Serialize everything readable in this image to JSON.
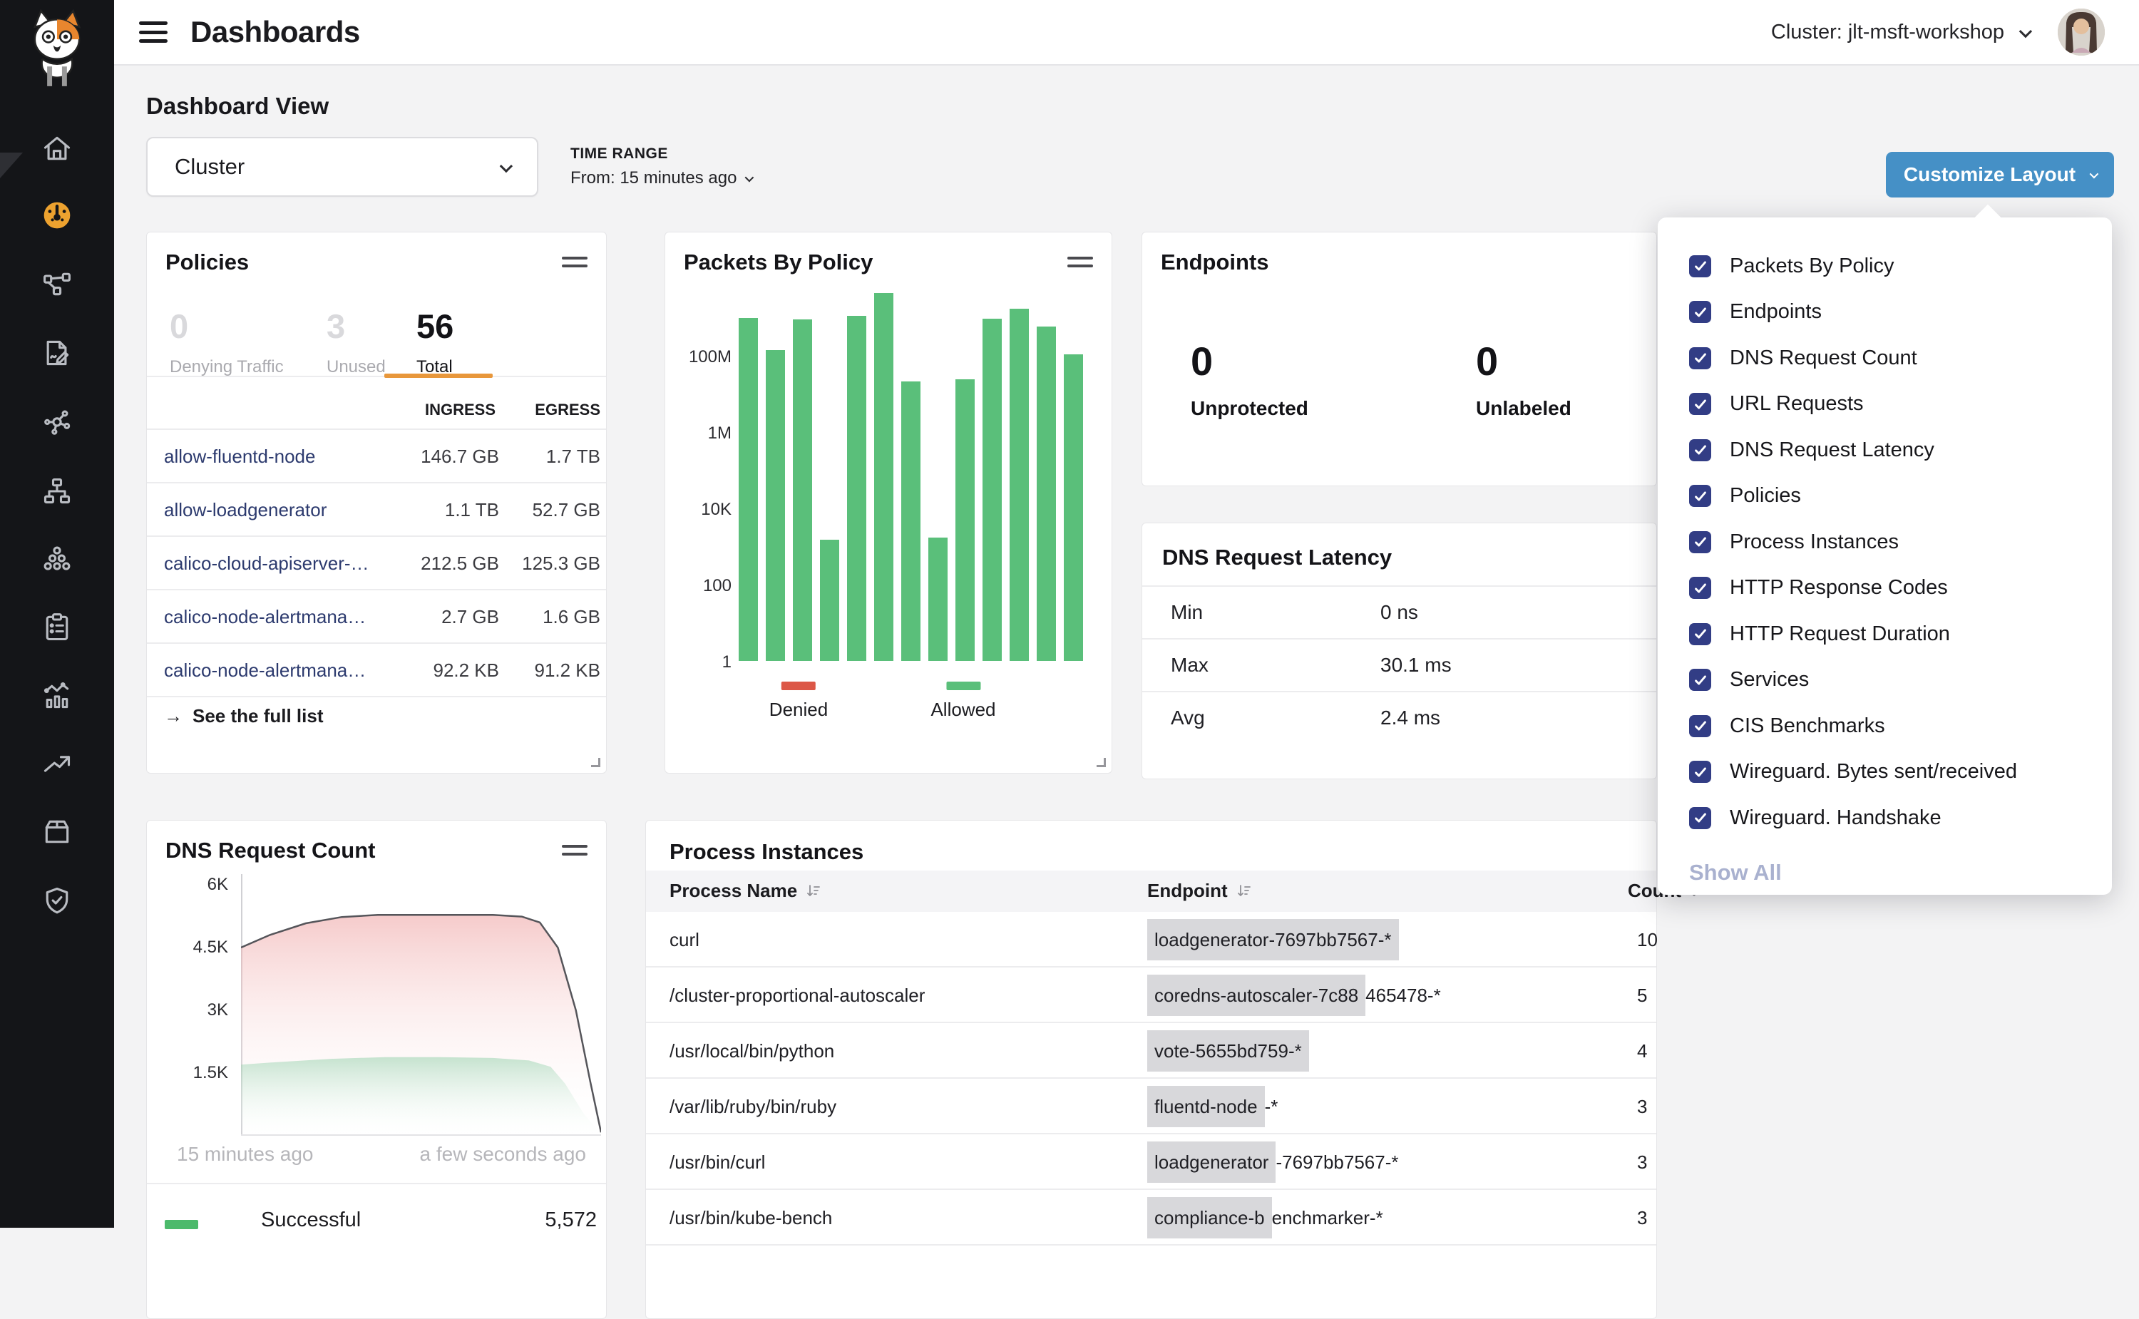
{
  "header": {
    "title": "Dashboards",
    "cluster": "Cluster: jlt-msft-workshop"
  },
  "toolbar": {
    "subtitle": "Dashboard View",
    "view_value": "Cluster",
    "time_range_label": "TIME RANGE",
    "time_range_value": "From: 15 minutes ago",
    "customize": "Customize Layout"
  },
  "sidebar": {
    "items": [
      {
        "icon": "home-icon",
        "active": false
      },
      {
        "icon": "dashboard-gauge-icon",
        "active": true
      },
      {
        "icon": "network-policy-icon",
        "active": false
      },
      {
        "icon": "policy-editor-icon",
        "active": false
      },
      {
        "icon": "service-graph-icon",
        "active": false
      },
      {
        "icon": "network-sets-icon",
        "active": false
      },
      {
        "icon": "workloads-icon",
        "active": false
      },
      {
        "icon": "compliance-clipboard-icon",
        "active": false
      },
      {
        "icon": "activity-stats-icon",
        "active": false
      },
      {
        "icon": "trend-icon",
        "active": false
      },
      {
        "icon": "package-icon",
        "active": false
      },
      {
        "icon": "security-shield-icon",
        "active": false
      }
    ]
  },
  "policies": {
    "title": "Policies",
    "stats": [
      {
        "value": "0",
        "label": "Denying Traffic",
        "active": false
      },
      {
        "value": "3",
        "label": "Unused",
        "active": false
      },
      {
        "value": "56",
        "label": "Total",
        "active": true
      }
    ],
    "columns": [
      "INGRESS",
      "EGRESS"
    ],
    "rows": [
      {
        "name": "allow-fluentd-node",
        "ingress": "146.7 GB",
        "egress": "1.7 TB"
      },
      {
        "name": "allow-loadgenerator",
        "ingress": "1.1 TB",
        "egress": "52.7 GB"
      },
      {
        "name": "calico-cloud-apiserver-…",
        "ingress": "212.5 GB",
        "egress": "125.3 GB"
      },
      {
        "name": "calico-node-alertmana…",
        "ingress": "2.7 GB",
        "egress": "1.6 GB"
      },
      {
        "name": "calico-node-alertmana…",
        "ingress": "92.2 KB",
        "egress": "91.2 KB"
      }
    ],
    "link": "See the full list"
  },
  "packets": {
    "title": "Packets By Policy",
    "chart_data": {
      "type": "bar",
      "scale": "log",
      "ylabel": "packets",
      "y_ticks": [
        {
          "label": "100M",
          "decade": 8
        },
        {
          "label": "1M",
          "decade": 6
        },
        {
          "label": "10K",
          "decade": 4
        },
        {
          "label": "100",
          "decade": 2
        },
        {
          "label": "1",
          "decade": 0
        }
      ],
      "values": [
        1000000000,
        140000000,
        900000000,
        1500,
        1100000000,
        4500000000,
        21000000,
        1700,
        24000000,
        930000000,
        1700000000,
        580000000,
        110000000
      ],
      "series_name": "Allowed",
      "legend": [
        {
          "label": "Denied",
          "color": "#dc5747",
          "x": 187
        },
        {
          "label": "Allowed",
          "color": "#5abf7a",
          "x": 418
        }
      ],
      "grid": false,
      "legend_position": "bottom"
    }
  },
  "endpoints": {
    "title": "Endpoints",
    "stats": [
      {
        "value": "0",
        "label": "Unprotected"
      },
      {
        "value": "0",
        "label": "Unlabeled"
      }
    ]
  },
  "dns_latency": {
    "title": "DNS Request Latency",
    "rows": [
      {
        "label": "Min",
        "value": "0 ns"
      },
      {
        "label": "Max",
        "value": "30.1 ms"
      },
      {
        "label": "Avg",
        "value": "2.4 ms"
      }
    ]
  },
  "dns_count": {
    "title": "DNS Request Count",
    "chart_data": {
      "type": "area",
      "y_ticks": [
        {
          "label": "6K",
          "value": 6000
        },
        {
          "label": "4.5K",
          "value": 4500
        },
        {
          "label": "3K",
          "value": 3000
        },
        {
          "label": "1.5K",
          "value": 1500
        }
      ],
      "x_labels": [
        "15 minutes ago",
        "a few seconds ago"
      ],
      "ylim": [
        0,
        6250
      ],
      "series": [
        {
          "name": "total-requests-line",
          "color_top": "rgba(238,160,160,0.55)",
          "line_color": "#55555a",
          "points": [
            [
              0,
              4500
            ],
            [
              0.08,
              4800
            ],
            [
              0.18,
              5080
            ],
            [
              0.28,
              5230
            ],
            [
              0.38,
              5280
            ],
            [
              0.55,
              5280
            ],
            [
              0.7,
              5280
            ],
            [
              0.78,
              5240
            ],
            [
              0.83,
              5100
            ],
            [
              0.88,
              4500
            ],
            [
              0.93,
              3000
            ],
            [
              0.97,
              1300
            ],
            [
              1,
              80
            ]
          ]
        },
        {
          "name": "successful-requests-area",
          "color_top": "rgba(140,205,165,0.5)",
          "line_color": "none",
          "points": [
            [
              0,
              1700
            ],
            [
              0.1,
              1760
            ],
            [
              0.25,
              1840
            ],
            [
              0.4,
              1880
            ],
            [
              0.55,
              1880
            ],
            [
              0.7,
              1860
            ],
            [
              0.8,
              1800
            ],
            [
              0.86,
              1650
            ],
            [
              0.9,
              1250
            ],
            [
              0.95,
              550
            ],
            [
              1,
              30
            ]
          ]
        }
      ],
      "grid": false
    },
    "legend": {
      "label": "Successful",
      "value": "5,572",
      "color": "#4cba6b"
    }
  },
  "process": {
    "title": "Process Instances",
    "columns": [
      "Process Name",
      "Endpoint",
      "Count"
    ],
    "rows": [
      {
        "process": "curl",
        "endpoint_hl": "loadgenerator-7697bb7567-*",
        "endpoint_rest": "",
        "count": "10"
      },
      {
        "process": "/cluster-proportional-autoscaler",
        "endpoint_hl": "coredns-autoscaler-7c88",
        "endpoint_rest": "465478-*",
        "count": "5"
      },
      {
        "process": "/usr/local/bin/python",
        "endpoint_hl": "vote-5655bd759-*",
        "endpoint_rest": "",
        "count": "4"
      },
      {
        "process": "/var/lib/ruby/bin/ruby",
        "endpoint_hl": "fluentd-node",
        "endpoint_rest": "-*",
        "count": "3"
      },
      {
        "process": "/usr/bin/curl",
        "endpoint_hl": "loadgenerator",
        "endpoint_rest": "-7697bb7567-*",
        "count": "3"
      },
      {
        "process": "/usr/bin/kube-bench",
        "endpoint_hl": "compliance-b",
        "endpoint_rest": "enchmarker-*",
        "count": "3"
      }
    ]
  },
  "dropdown": {
    "items": [
      {
        "label": "Packets By Policy",
        "checked": true
      },
      {
        "label": "Endpoints",
        "checked": true
      },
      {
        "label": "DNS Request Count",
        "checked": true
      },
      {
        "label": "URL Requests",
        "checked": true
      },
      {
        "label": "DNS Request Latency",
        "checked": true
      },
      {
        "label": "Policies",
        "checked": true
      },
      {
        "label": "Process Instances",
        "checked": true
      },
      {
        "label": "HTTP Response Codes",
        "checked": true
      },
      {
        "label": "HTTP Request Duration",
        "checked": true
      },
      {
        "label": "Services",
        "checked": true
      },
      {
        "label": "CIS Benchmarks",
        "checked": true
      },
      {
        "label": "Wireguard. Bytes sent/received",
        "checked": true
      },
      {
        "label": "Wireguard. Handshake",
        "checked": true
      }
    ],
    "show_all": "Show All"
  },
  "colors": {
    "accent_orange": "#eda22f",
    "button_blue": "#4590c6",
    "checkbox_indigo": "#323d85",
    "bar_green": "#5abf7a",
    "denied_red": "#dc5747",
    "link_navy": "#2c3a6e",
    "sidebar_bg": "#141518"
  }
}
